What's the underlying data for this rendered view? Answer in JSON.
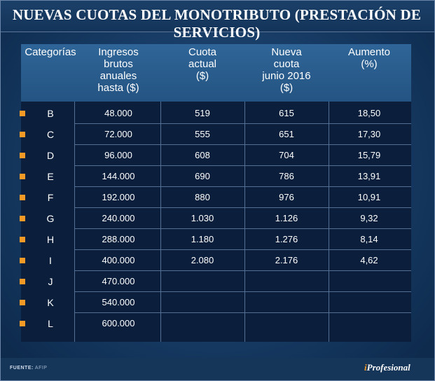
{
  "title": "NUEVAS CUOTAS DEL MONOTRIBUTO (PRESTACIÓN DE SERVICIOS)",
  "source": {
    "label": "FUENTE:",
    "value": "AFIP"
  },
  "brand": {
    "prefix": "i",
    "name": "Profesional"
  },
  "colors": {
    "background": "#0d2a4e",
    "header": "#2f6598",
    "bullet": "#f39a26"
  },
  "chart_data": {
    "type": "table",
    "title": "NUEVAS CUOTAS DEL MONOTRIBUTO (PRESTACIÓN DE SERVICIOS)",
    "columns": [
      "Categorías",
      "Ingresos\nbrutos\nanuales\nhasta ($)",
      "Cuota\nactual\n($)",
      "Nueva\ncuota\njunio 2016\n($)",
      "Aumento\n(%)"
    ],
    "rows": [
      [
        "B",
        "48.000",
        "519",
        "615",
        "18,50"
      ],
      [
        "C",
        "72.000",
        "555",
        "651",
        "17,30"
      ],
      [
        "D",
        "96.000",
        "608",
        "704",
        "15,79"
      ],
      [
        "E",
        "144.000",
        "690",
        "786",
        "13,91"
      ],
      [
        "F",
        "192.000",
        "880",
        "976",
        "10,91"
      ],
      [
        "G",
        "240.000",
        "1.030",
        "1.126",
        "9,32"
      ],
      [
        "H",
        "288.000",
        "1.180",
        "1.276",
        "8,14"
      ],
      [
        "I",
        "400.000",
        "2.080",
        "2.176",
        "4,62"
      ],
      [
        "J",
        "470.000",
        "",
        "",
        ""
      ],
      [
        "K",
        "540.000",
        "",
        "",
        ""
      ],
      [
        "L",
        "600.000",
        "",
        "",
        ""
      ]
    ]
  }
}
